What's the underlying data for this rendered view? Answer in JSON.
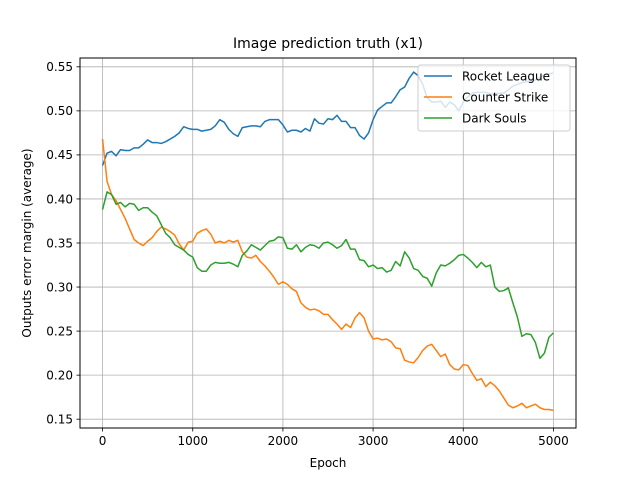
{
  "chart_data": {
    "type": "line",
    "title": "Image prediction truth (x1)",
    "xlabel": "Epoch",
    "ylabel": "Outputs error margin (average)",
    "xlim": [
      -250,
      5250
    ],
    "ylim": [
      0.14,
      0.56
    ],
    "xticks": [
      0,
      1000,
      2000,
      3000,
      4000,
      5000
    ],
    "yticks": [
      0.15,
      0.2,
      0.25,
      0.3,
      0.35,
      0.4,
      0.45,
      0.5,
      0.55
    ],
    "xtick_labels": [
      "0",
      "1000",
      "2000",
      "3000",
      "4000",
      "5000"
    ],
    "ytick_labels": [
      "0.15",
      "0.20",
      "0.25",
      "0.30",
      "0.35",
      "0.40",
      "0.45",
      "0.50",
      "0.55"
    ],
    "grid": true,
    "legend_position": "top-right",
    "x": [
      0,
      50,
      100,
      150,
      200,
      250,
      300,
      350,
      400,
      450,
      500,
      550,
      600,
      650,
      700,
      750,
      800,
      850,
      900,
      950,
      1000,
      1050,
      1100,
      1150,
      1200,
      1250,
      1300,
      1350,
      1400,
      1450,
      1500,
      1550,
      1600,
      1650,
      1700,
      1750,
      1800,
      1850,
      1900,
      1950,
      2000,
      2050,
      2100,
      2150,
      2200,
      2250,
      2300,
      2350,
      2400,
      2450,
      2500,
      2550,
      2600,
      2650,
      2700,
      2750,
      2800,
      2850,
      2900,
      2950,
      3000,
      3050,
      3100,
      3150,
      3200,
      3250,
      3300,
      3350,
      3400,
      3450,
      3500,
      3550,
      3600,
      3650,
      3700,
      3750,
      3800,
      3850,
      3900,
      3950,
      4000,
      4050,
      4100,
      4150,
      4200,
      4250,
      4300,
      4350,
      4400,
      4450,
      4500,
      4550,
      4600,
      4650,
      4700,
      4750,
      4800,
      4850,
      4900,
      4950,
      5000
    ],
    "series": [
      {
        "name": "Rocket League",
        "color": "#1f77b4",
        "values": [
          0.438,
          0.452,
          0.454,
          0.449,
          0.456,
          0.455,
          0.455,
          0.458,
          0.458,
          0.462,
          0.467,
          0.464,
          0.464,
          0.463,
          0.465,
          0.468,
          0.471,
          0.475,
          0.482,
          0.48,
          0.479,
          0.479,
          0.477,
          0.478,
          0.479,
          0.483,
          0.49,
          0.487,
          0.479,
          0.474,
          0.471,
          0.481,
          0.482,
          0.483,
          0.483,
          0.482,
          0.488,
          0.49,
          0.49,
          0.49,
          0.484,
          0.476,
          0.478,
          0.478,
          0.476,
          0.48,
          0.477,
          0.491,
          0.486,
          0.485,
          0.491,
          0.49,
          0.495,
          0.488,
          0.488,
          0.481,
          0.481,
          0.472,
          0.468,
          0.475,
          0.49,
          0.501,
          0.505,
          0.509,
          0.509,
          0.516,
          0.524,
          0.527,
          0.537,
          0.544,
          0.54,
          0.53,
          0.515,
          0.51,
          0.51,
          0.511,
          0.504,
          0.51,
          0.507,
          0.5,
          0.51,
          0.516,
          0.52,
          0.521,
          0.521,
          0.521,
          0.519,
          0.52,
          0.52,
          0.52,
          0.524,
          0.528,
          0.53,
          0.532,
          0.533,
          0.534,
          0.535,
          0.538,
          0.541,
          0.542,
          0.543
        ]
      },
      {
        "name": "Counter Strike",
        "color": "#ff7f0e",
        "values": [
          0.468,
          0.42,
          0.405,
          0.398,
          0.388,
          0.378,
          0.366,
          0.354,
          0.35,
          0.347,
          0.352,
          0.356,
          0.363,
          0.368,
          0.366,
          0.363,
          0.359,
          0.349,
          0.342,
          0.351,
          0.352,
          0.361,
          0.364,
          0.366,
          0.36,
          0.35,
          0.352,
          0.35,
          0.353,
          0.351,
          0.353,
          0.34,
          0.334,
          0.333,
          0.336,
          0.329,
          0.324,
          0.318,
          0.311,
          0.303,
          0.306,
          0.303,
          0.298,
          0.295,
          0.282,
          0.277,
          0.274,
          0.275,
          0.273,
          0.269,
          0.269,
          0.263,
          0.258,
          0.252,
          0.258,
          0.254,
          0.265,
          0.271,
          0.265,
          0.25,
          0.241,
          0.242,
          0.24,
          0.241,
          0.238,
          0.231,
          0.23,
          0.217,
          0.215,
          0.214,
          0.22,
          0.228,
          0.233,
          0.235,
          0.228,
          0.221,
          0.224,
          0.212,
          0.207,
          0.206,
          0.212,
          0.211,
          0.202,
          0.194,
          0.196,
          0.187,
          0.192,
          0.188,
          0.182,
          0.174,
          0.166,
          0.163,
          0.165,
          0.168,
          0.163,
          0.165,
          0.167,
          0.163,
          0.161,
          0.161,
          0.16
        ]
      },
      {
        "name": "Dark Souls",
        "color": "#2ca02c",
        "values": [
          0.388,
          0.408,
          0.405,
          0.394,
          0.396,
          0.391,
          0.395,
          0.394,
          0.387,
          0.39,
          0.39,
          0.385,
          0.381,
          0.371,
          0.361,
          0.356,
          0.348,
          0.345,
          0.342,
          0.337,
          0.334,
          0.322,
          0.318,
          0.318,
          0.325,
          0.328,
          0.327,
          0.327,
          0.328,
          0.326,
          0.323,
          0.336,
          0.341,
          0.348,
          0.345,
          0.342,
          0.347,
          0.352,
          0.353,
          0.357,
          0.356,
          0.344,
          0.343,
          0.348,
          0.34,
          0.345,
          0.348,
          0.347,
          0.344,
          0.35,
          0.351,
          0.348,
          0.344,
          0.347,
          0.354,
          0.343,
          0.343,
          0.331,
          0.33,
          0.323,
          0.325,
          0.321,
          0.322,
          0.317,
          0.319,
          0.329,
          0.324,
          0.34,
          0.333,
          0.321,
          0.319,
          0.312,
          0.31,
          0.301,
          0.316,
          0.325,
          0.324,
          0.327,
          0.331,
          0.336,
          0.337,
          0.333,
          0.328,
          0.322,
          0.328,
          0.323,
          0.325,
          0.3,
          0.295,
          0.296,
          0.299,
          0.282,
          0.266,
          0.244,
          0.247,
          0.246,
          0.237,
          0.219,
          0.225,
          0.243,
          0.248
        ]
      }
    ]
  }
}
